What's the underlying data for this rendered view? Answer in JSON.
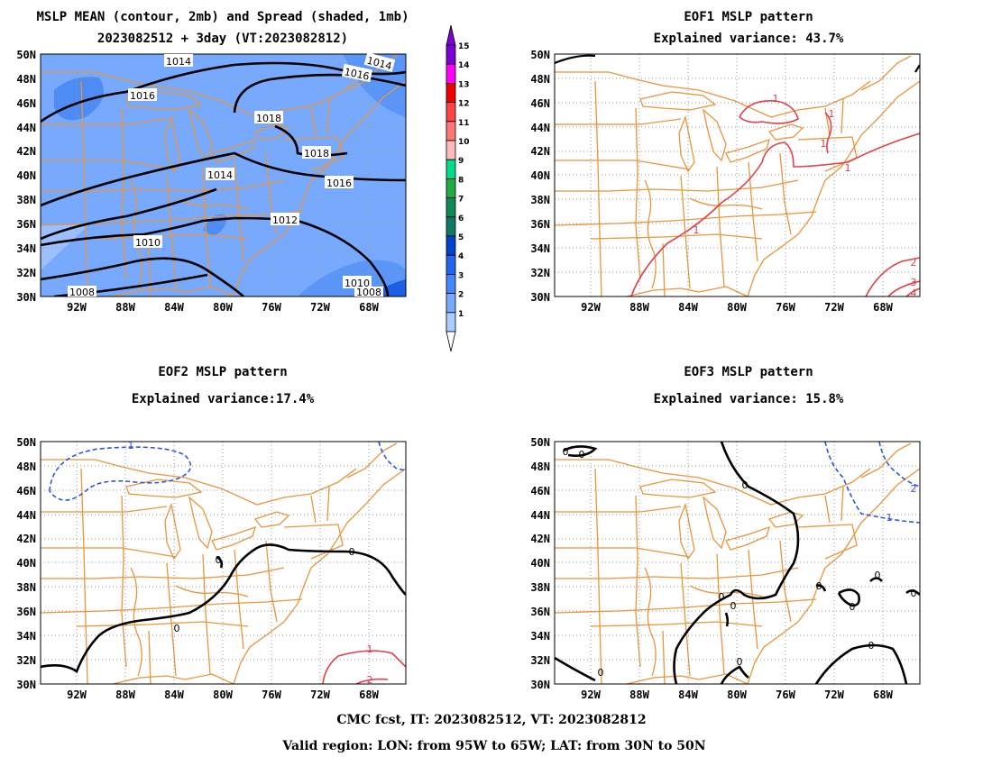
{
  "panels": [
    {
      "id": "p1",
      "title1": "MSLP MEAN (contour, 2mb) and Spread (shaded, 1mb)",
      "title2": "2023082512 + 3day (VT:2023082812)"
    },
    {
      "id": "p2",
      "title1": "EOF1 MSLP pattern",
      "title2": "Explained variance: 43.7%"
    },
    {
      "id": "p3",
      "title1": "EOF2 MSLP pattern",
      "title2": "Explained variance:17.4%"
    },
    {
      "id": "p4",
      "title1": "EOF3 MSLP pattern",
      "title2": "Explained variance: 15.8%"
    }
  ],
  "axes": {
    "lat_ticks": [
      "50N",
      "48N",
      "46N",
      "44N",
      "42N",
      "40N",
      "38N",
      "36N",
      "34N",
      "32N",
      "30N"
    ],
    "lon_ticks": [
      "92W",
      "88W",
      "84W",
      "80W",
      "76W",
      "72W",
      "68W"
    ]
  },
  "colorbar": {
    "labels": [
      "15",
      "14",
      "13",
      "12",
      "11",
      "10",
      "9",
      "8",
      "7",
      "6",
      "5",
      "4",
      "3",
      "2",
      "1"
    ],
    "colors": [
      "#7b00d4",
      "#ff00ff",
      "#ee0000",
      "#ff4444",
      "#ff7777",
      "#ffbbbb",
      "#00dd88",
      "#22aa44",
      "#118855",
      "#117766",
      "#0044cc",
      "#2266ee",
      "#4488ff",
      "#77aaff",
      "#aaccff"
    ]
  },
  "contour_labels": {
    "p1": [
      "1014",
      "1014",
      "1016",
      "1016",
      "1018",
      "1018",
      "1014",
      "1016",
      "1012",
      "1010",
      "1010",
      "1008",
      "1008"
    ],
    "p2": [
      "1",
      "1",
      "1",
      "1",
      "1",
      "2",
      "3",
      "4"
    ],
    "p3": [
      "1",
      "0",
      "0",
      "0",
      "1",
      "2"
    ],
    "p4": [
      "0",
      "0",
      "0",
      "0",
      "0",
      "0",
      "0",
      "0",
      "0",
      "0",
      "2",
      "1"
    ]
  },
  "footer": {
    "line1": "CMC fcst, IT: 2023082512, VT: 2023082812",
    "line2": "Valid region: LON: from 95W to 65W; LAT: from 30N to 50N"
  }
}
